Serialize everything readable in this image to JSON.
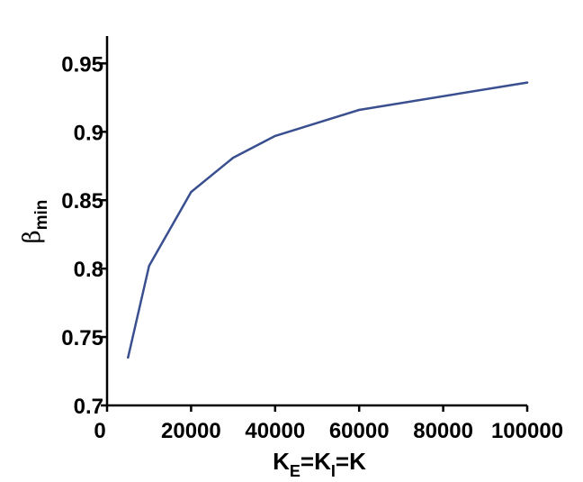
{
  "chart_data": {
    "type": "line",
    "title": "",
    "xlabel": {
      "main": "K",
      "sub1": "E",
      "eq1": "=K",
      "sub2": "I",
      "eq2": "=K"
    },
    "ylabel": {
      "symbol": "β",
      "sub": "min"
    },
    "xlim": [
      0,
      100000
    ],
    "ylim": [
      0.7,
      0.97
    ],
    "x_ticks": [
      0,
      20000,
      40000,
      60000,
      80000,
      100000
    ],
    "x_tick_labels": [
      "0",
      "20000",
      "40000",
      "60000",
      "80000",
      "100000"
    ],
    "y_ticks": [
      0.7,
      0.75,
      0.8,
      0.85,
      0.9,
      0.95
    ],
    "y_tick_labels": [
      "0.7",
      "0.75",
      "0.8",
      "0.85",
      "0.9",
      "0.95"
    ],
    "grid": false,
    "series": [
      {
        "color": "#3a4f8f",
        "x": [
          5000,
          10000,
          20000,
          30000,
          40000,
          60000,
          100000
        ],
        "y": [
          0.735,
          0.802,
          0.856,
          0.881,
          0.897,
          0.916,
          0.936
        ]
      }
    ]
  }
}
